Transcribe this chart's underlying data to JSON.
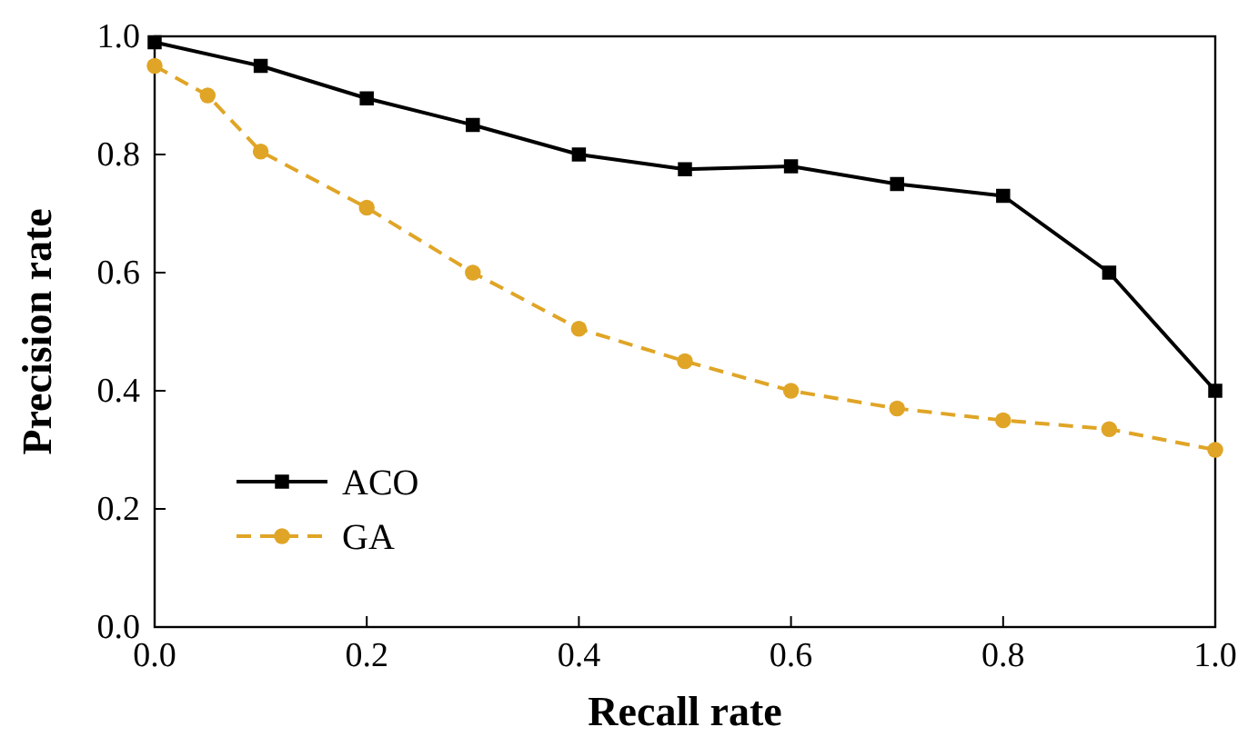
{
  "chart_data": {
    "type": "line",
    "xlabel": "Recall rate",
    "ylabel": "Precision rate",
    "xlim": [
      0,
      1
    ],
    "ylim": [
      0,
      1
    ],
    "xticks": [
      {
        "value": 0,
        "label": "0.0"
      },
      0.2,
      0.4,
      0.6,
      0.8,
      {
        "value": 1,
        "label": "1.0"
      }
    ],
    "yticks": [
      {
        "value": 0,
        "label": "0.0"
      },
      0.2,
      0.4,
      0.6,
      0.8,
      {
        "value": 1,
        "label": "1.0"
      }
    ],
    "legend": "bottom left",
    "grid": false,
    "series": [
      {
        "name": "ACO",
        "color": "#000000",
        "marker": "square",
        "line_style": "solid",
        "x": [
          0,
          0.1,
          0.2,
          0.3,
          0.4,
          0.5,
          0.6,
          0.7,
          0.8,
          0.9,
          1.0
        ],
        "values": [
          0.99,
          0.95,
          0.895,
          0.85,
          0.8,
          0.775,
          0.78,
          0.75,
          0.73,
          0.6,
          0.4
        ]
      },
      {
        "name": "GA",
        "color": "#e0a526",
        "marker": "circle",
        "line_style": "dashed",
        "x": [
          0,
          0.05,
          0.1,
          0.2,
          0.3,
          0.4,
          0.5,
          0.6,
          0.7,
          0.8,
          0.9,
          1.0
        ],
        "values": [
          0.95,
          0.9,
          0.805,
          0.71,
          0.6,
          0.505,
          0.45,
          0.4,
          0.37,
          0.35,
          0.335,
          0.3
        ]
      }
    ]
  }
}
